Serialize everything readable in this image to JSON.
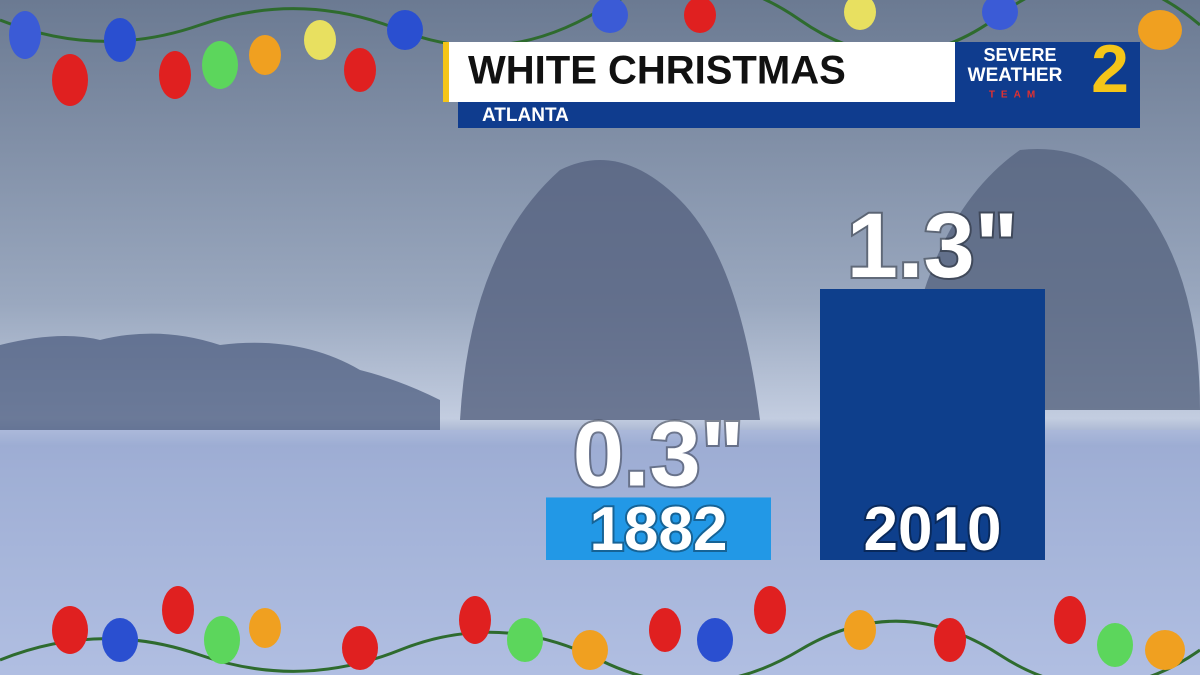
{
  "chart_data": {
    "type": "bar",
    "title": "WHITE CHRISTMAS",
    "subtitle": "ATLANTA",
    "categories": [
      "1882",
      "2010"
    ],
    "values": [
      0.3,
      1.3
    ],
    "value_labels": [
      "0.3\"",
      "1.3\""
    ],
    "colors": [
      "#2298e6",
      "#0e3f8c"
    ]
  },
  "logo": {
    "line1": "SEVERE",
    "line2": "WEATHER",
    "line3": "TEAM",
    "number": "2"
  }
}
